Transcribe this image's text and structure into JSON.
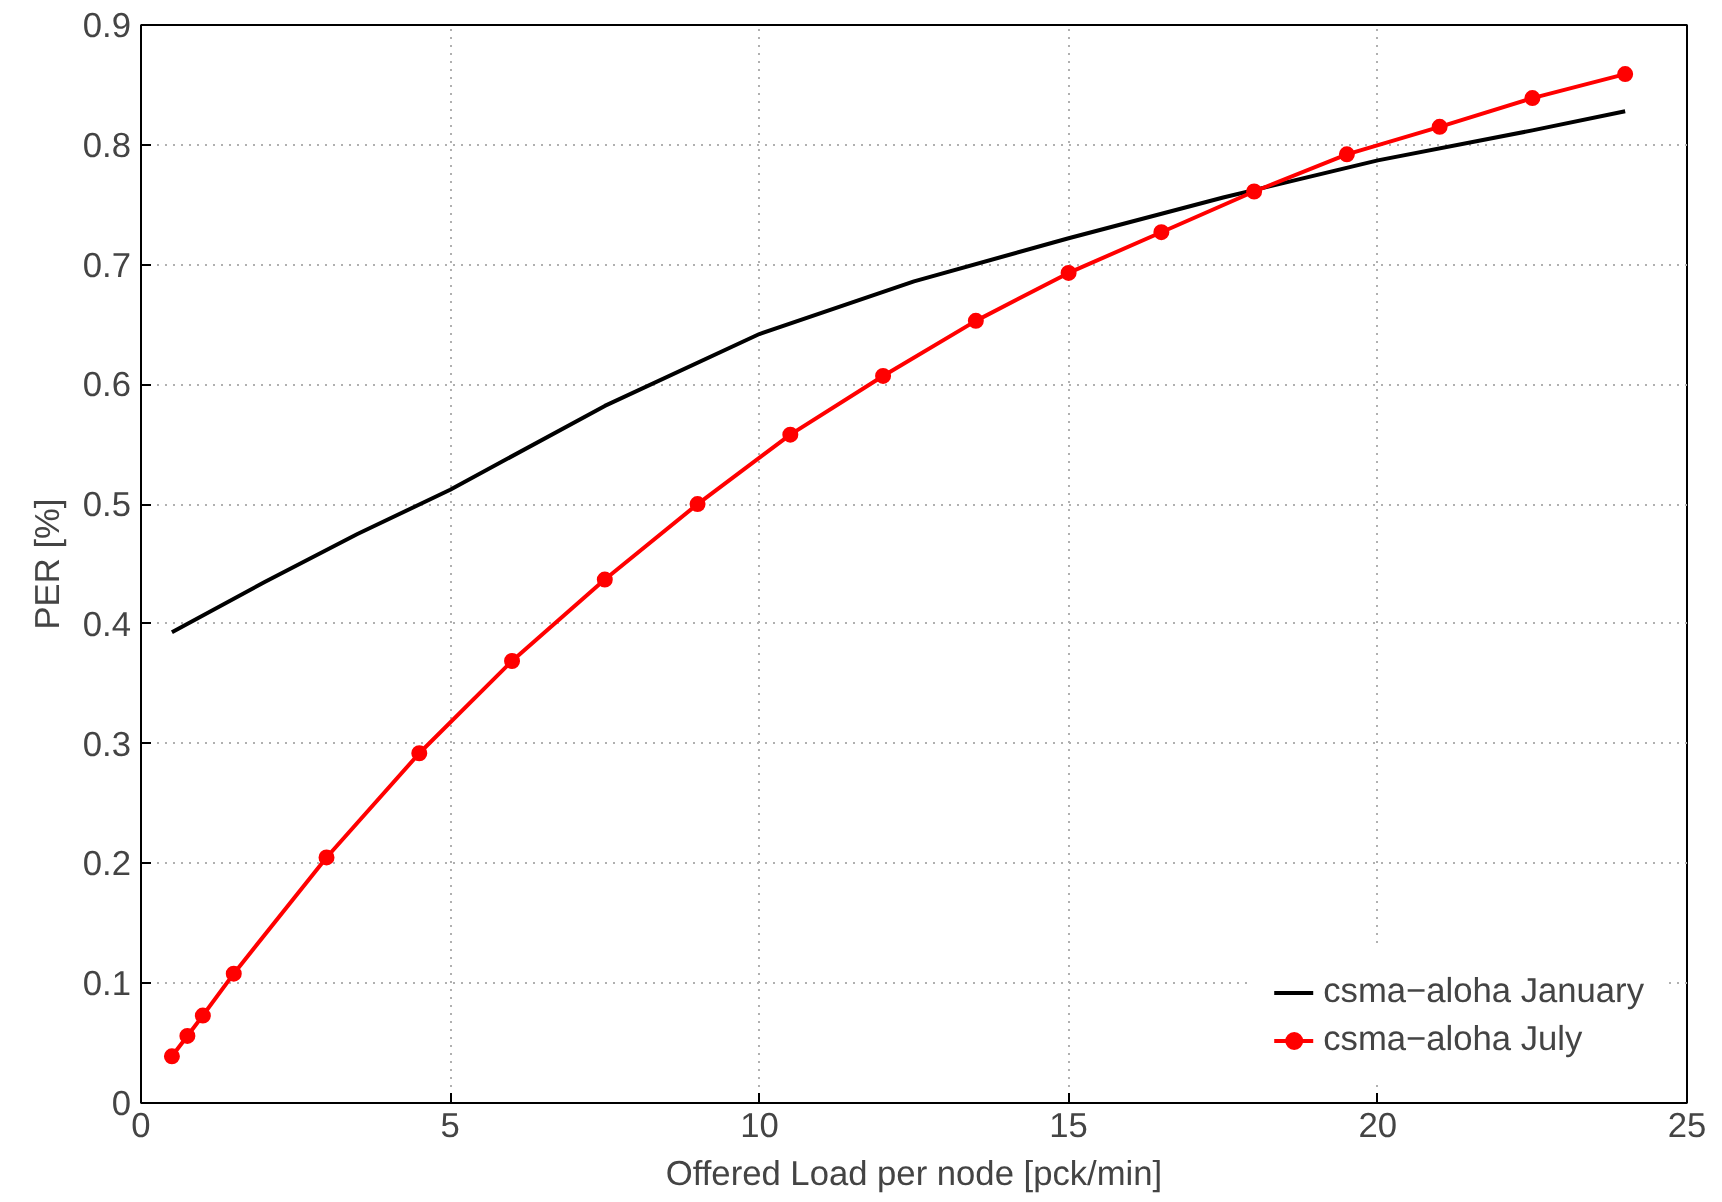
{
  "chart_data": {
    "type": "line",
    "xlabel": "Offered Load per node [pck/min]",
    "ylabel": "PER [%]",
    "xlim": [
      0,
      25
    ],
    "ylim": [
      0,
      0.9
    ],
    "xticks": [
      0,
      5,
      10,
      15,
      20,
      25
    ],
    "yticks": [
      0,
      0.1,
      0.2,
      0.3,
      0.4,
      0.5,
      0.6,
      0.7,
      0.8,
      0.9
    ],
    "grid": true,
    "legend": "bottom right",
    "line_style": "solid",
    "series": [
      {
        "name": "csma−aloha January",
        "color": "#000000",
        "marker": "none",
        "x": [
          0.5,
          2,
          3.5,
          5,
          7.5,
          10,
          12.5,
          15,
          17.5,
          20,
          22.5,
          24
        ],
        "values": [
          0.393,
          0.435,
          0.475,
          0.512,
          0.582,
          0.642,
          0.686,
          0.722,
          0.756,
          0.787,
          0.812,
          0.828
        ]
      },
      {
        "name": "csma−aloha July",
        "color": "#ff0000",
        "marker": "circle",
        "x": [
          0.5,
          0.75,
          1,
          1.5,
          3,
          4.5,
          6,
          7.5,
          9,
          10.5,
          12,
          13.5,
          15,
          16.5,
          18,
          19.5,
          21,
          22.5,
          24
        ],
        "values": [
          0.039,
          0.056,
          0.073,
          0.108,
          0.205,
          0.292,
          0.369,
          0.437,
          0.5,
          0.558,
          0.607,
          0.653,
          0.693,
          0.727,
          0.761,
          0.792,
          0.815,
          0.839,
          0.859
        ]
      }
    ]
  }
}
